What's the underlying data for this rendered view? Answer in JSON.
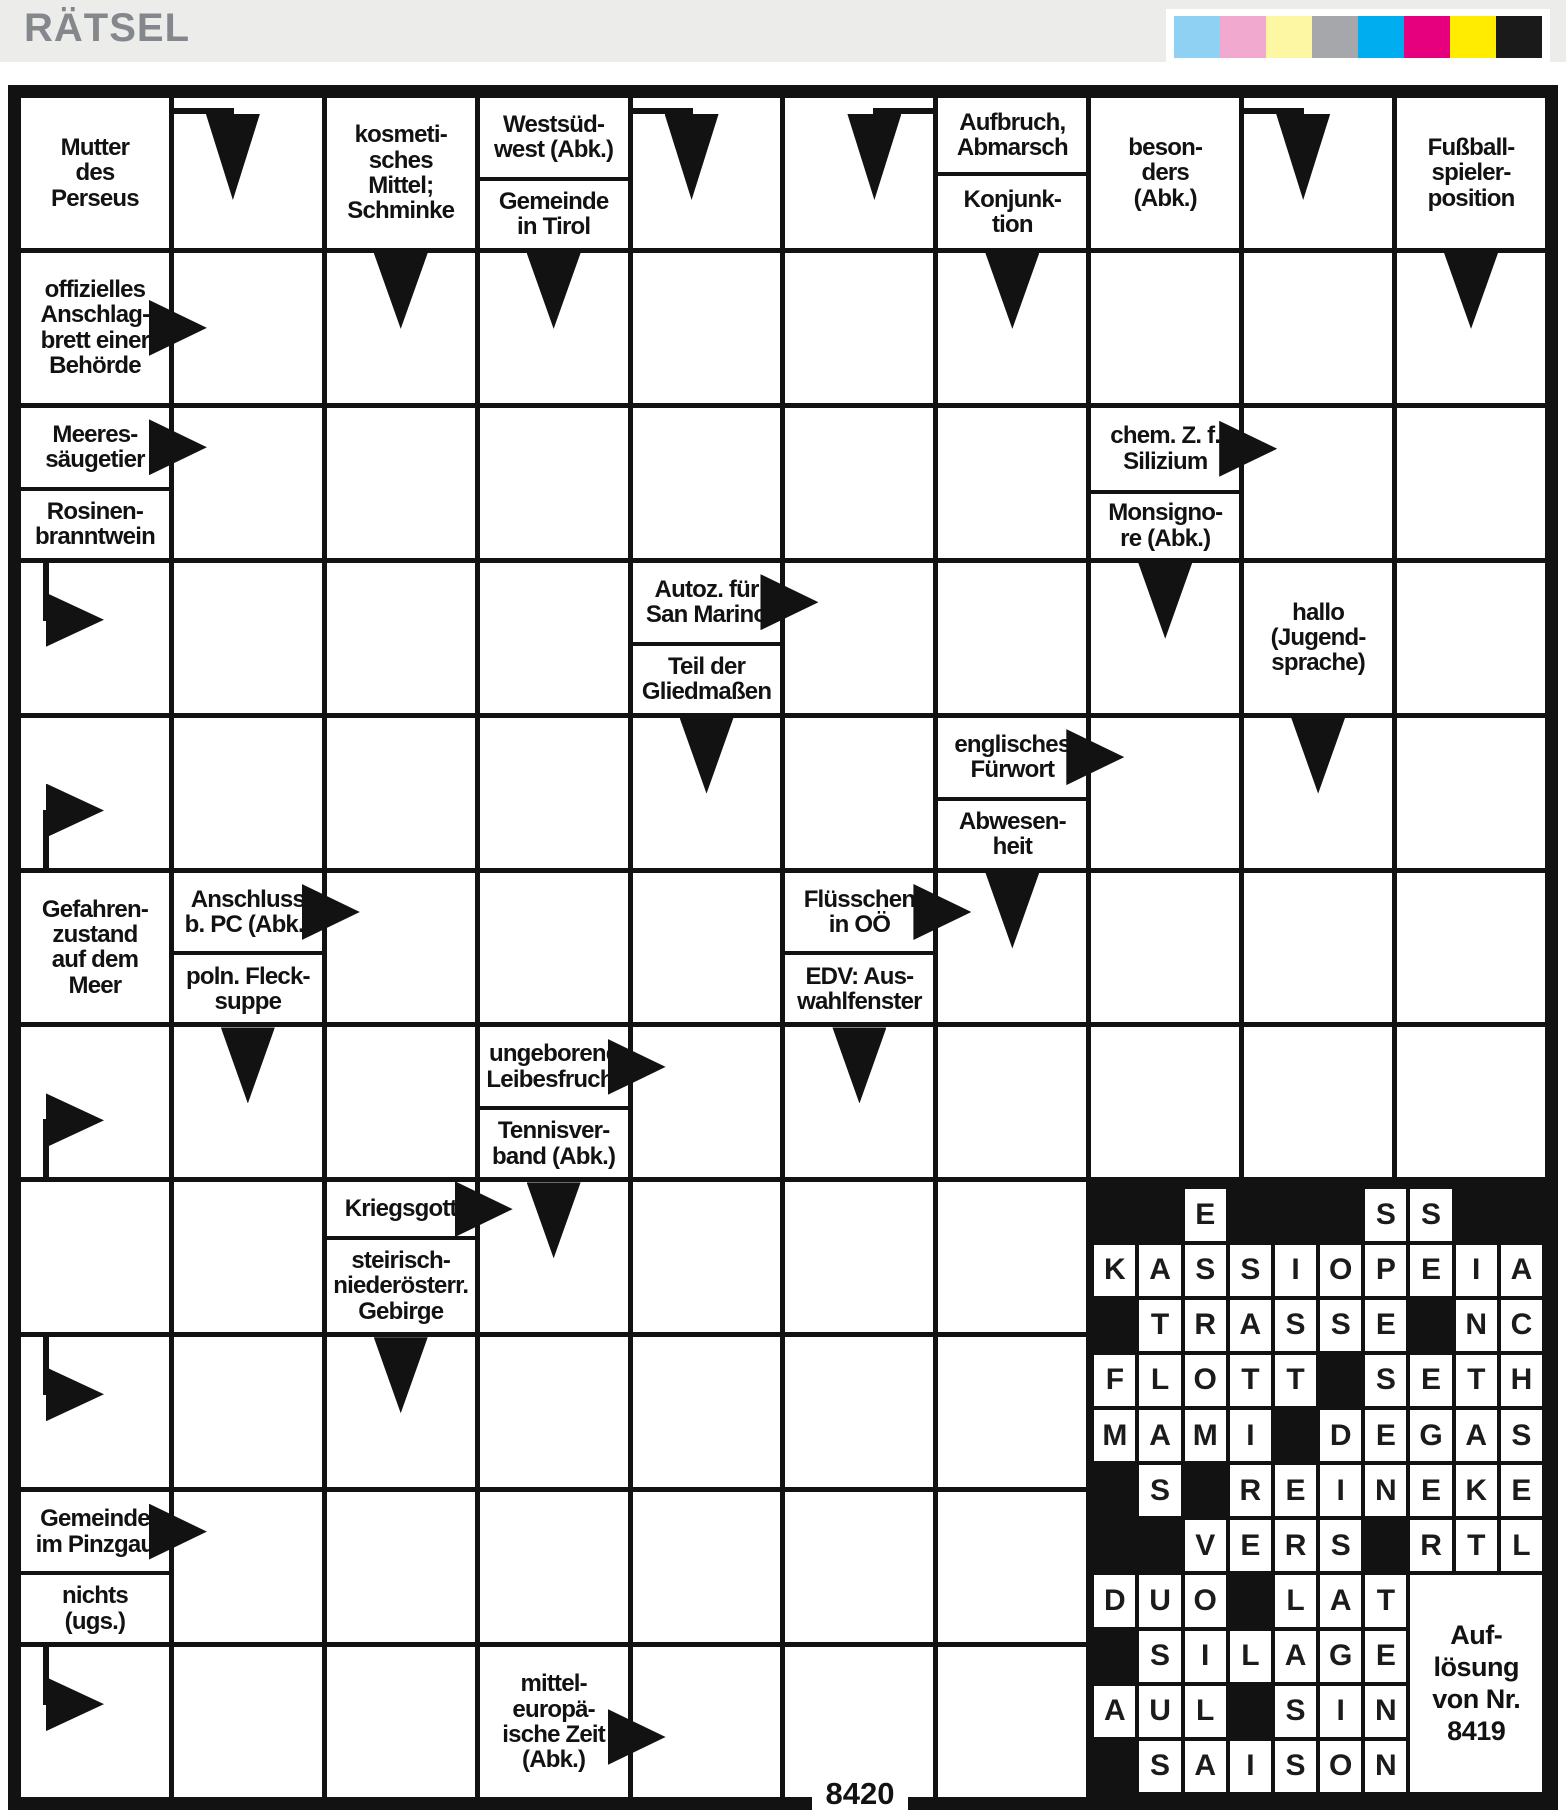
{
  "header": {
    "title": "RÄTSEL",
    "color_bar": [
      "#8ED1F2",
      "#F2A9CF",
      "#FDF6A3",
      "#A5A7AA",
      "#00AEEF",
      "#E6007D",
      "#FFEC00",
      "#1A1A1A"
    ]
  },
  "puzzle_number": "8420",
  "grid": {
    "cols": 10,
    "rows": 11,
    "cells": [
      {
        "r": 1,
        "c": 1,
        "kind": "clue",
        "text": "Mutter\ndes\nPerseus"
      },
      {
        "r": 1,
        "c": 2,
        "kind": "elbow",
        "dir": "left-down"
      },
      {
        "r": 1,
        "c": 3,
        "kind": "clue",
        "text": "kosmeti-\nsches\nMittel;\nSchminke"
      },
      {
        "r": 1,
        "c": 4,
        "kind": "split",
        "top": "Westsüd-\nwest (Abk.)",
        "top_arrow": false,
        "bottom": "Gemeinde\nin Tirol",
        "ratio": 50
      },
      {
        "r": 1,
        "c": 5,
        "kind": "elbow",
        "dir": "left-down"
      },
      {
        "r": 1,
        "c": 6,
        "kind": "elbow",
        "dir": "right-down"
      },
      {
        "r": 1,
        "c": 7,
        "kind": "split",
        "top": "Aufbruch,\nAbmarsch",
        "top_arrow": false,
        "bottom": "Konjunk-\ntion",
        "ratio": 47
      },
      {
        "r": 1,
        "c": 8,
        "kind": "clue",
        "text": "beson-\nders\n(Abk.)"
      },
      {
        "r": 1,
        "c": 9,
        "kind": "elbow",
        "dir": "left-down"
      },
      {
        "r": 1,
        "c": 10,
        "kind": "clue",
        "text": "Fußball-\nspieler-\nposition"
      },
      {
        "r": 2,
        "c": 1,
        "kind": "clue",
        "text": "offizielles\nAnschlag-\nbrett einer\nBehörde",
        "arrow": true,
        "arrow_at": 50
      },
      {
        "r": 2,
        "c": 3,
        "kind": "down"
      },
      {
        "r": 2,
        "c": 4,
        "kind": "down"
      },
      {
        "r": 2,
        "c": 7,
        "kind": "down"
      },
      {
        "r": 2,
        "c": 10,
        "kind": "down"
      },
      {
        "r": 3,
        "c": 1,
        "kind": "split",
        "top": "Meeres-\nsäugetier",
        "top_arrow": true,
        "bottom": "Rosinen-\nbranntwein",
        "ratio": 50
      },
      {
        "r": 3,
        "c": 8,
        "kind": "split",
        "top": "chem. Z. f.\nSilizium",
        "top_arrow": true,
        "bottom": "Monsigno-\nre (Abk.)",
        "ratio": 52
      },
      {
        "r": 4,
        "c": 1,
        "kind": "elbow",
        "dir": "top-right"
      },
      {
        "r": 4,
        "c": 5,
        "kind": "split",
        "top": "Autoz. für\nSan Marino",
        "top_arrow": true,
        "bottom": "Teil der\nGliedmaßen",
        "ratio": 50
      },
      {
        "r": 4,
        "c": 8,
        "kind": "down"
      },
      {
        "r": 4,
        "c": 9,
        "kind": "clue",
        "text": "hallo\n(Jugend-\nsprache)"
      },
      {
        "r": 5,
        "c": 1,
        "kind": "elbow",
        "dir": "bottom-right"
      },
      {
        "r": 5,
        "c": 5,
        "kind": "down"
      },
      {
        "r": 5,
        "c": 7,
        "kind": "split",
        "top": "englisches\nFürwort",
        "top_arrow": true,
        "bottom": "Abwesen-\nheit",
        "ratio": 50
      },
      {
        "r": 5,
        "c": 9,
        "kind": "down"
      },
      {
        "r": 6,
        "c": 1,
        "kind": "clue",
        "text": "Gefahren-\nzustand\nauf dem\nMeer"
      },
      {
        "r": 6,
        "c": 2,
        "kind": "split",
        "top": "Anschluss\nb. PC (Abk.)",
        "top_arrow": true,
        "bottom": "poln. Fleck-\nsuppe",
        "ratio": 50
      },
      {
        "r": 6,
        "c": 6,
        "kind": "split",
        "top": "Flüsschen\nin OÖ",
        "top_arrow": true,
        "bottom": "EDV: Aus-\nwahlfenster",
        "ratio": 50
      },
      {
        "r": 6,
        "c": 7,
        "kind": "down"
      },
      {
        "r": 7,
        "c": 1,
        "kind": "elbow",
        "dir": "bottom-right"
      },
      {
        "r": 7,
        "c": 2,
        "kind": "down"
      },
      {
        "r": 7,
        "c": 4,
        "kind": "split",
        "top": "ungeborene\nLeibesfrucht",
        "top_arrow": true,
        "bottom": "Tennisver-\nband (Abk.)",
        "ratio": 50
      },
      {
        "r": 7,
        "c": 6,
        "kind": "down"
      },
      {
        "r": 8,
        "c": 3,
        "kind": "split",
        "top": "Kriegsgott",
        "top_arrow": true,
        "bottom": "steirisch-\nniederösterr.\nGebirge",
        "ratio": 33
      },
      {
        "r": 8,
        "c": 4,
        "kind": "down"
      },
      {
        "r": 9,
        "c": 1,
        "kind": "elbow",
        "dir": "top-right"
      },
      {
        "r": 9,
        "c": 3,
        "kind": "down"
      },
      {
        "r": 10,
        "c": 1,
        "kind": "split",
        "top": "Gemeinde\nim Pinzgau",
        "top_arrow": true,
        "bottom": "nichts\n(ugs.)",
        "ratio": 50
      },
      {
        "r": 11,
        "c": 1,
        "kind": "elbow",
        "dir": "top-right"
      },
      {
        "r": 11,
        "c": 4,
        "kind": "clue",
        "text": "mittel-\neuropä-\nische Zeit\n(Abk.)",
        "arrow": true,
        "arrow_at": 60
      }
    ]
  },
  "solution_panel": {
    "rows": [
      "..E...SS..",
      "KASSIOPEIA",
      ".TRASSE.NC",
      "FLOTT.SETH",
      "MAMI.DEGAS",
      ".S.REINEKE",
      "..VERS.RTL",
      "DUO.LAT",
      ".SILAGE",
      "AUL.SIN",
      ".SAISON"
    ],
    "box_text": "Auf-\nlösung\nvon Nr.\n8419"
  }
}
